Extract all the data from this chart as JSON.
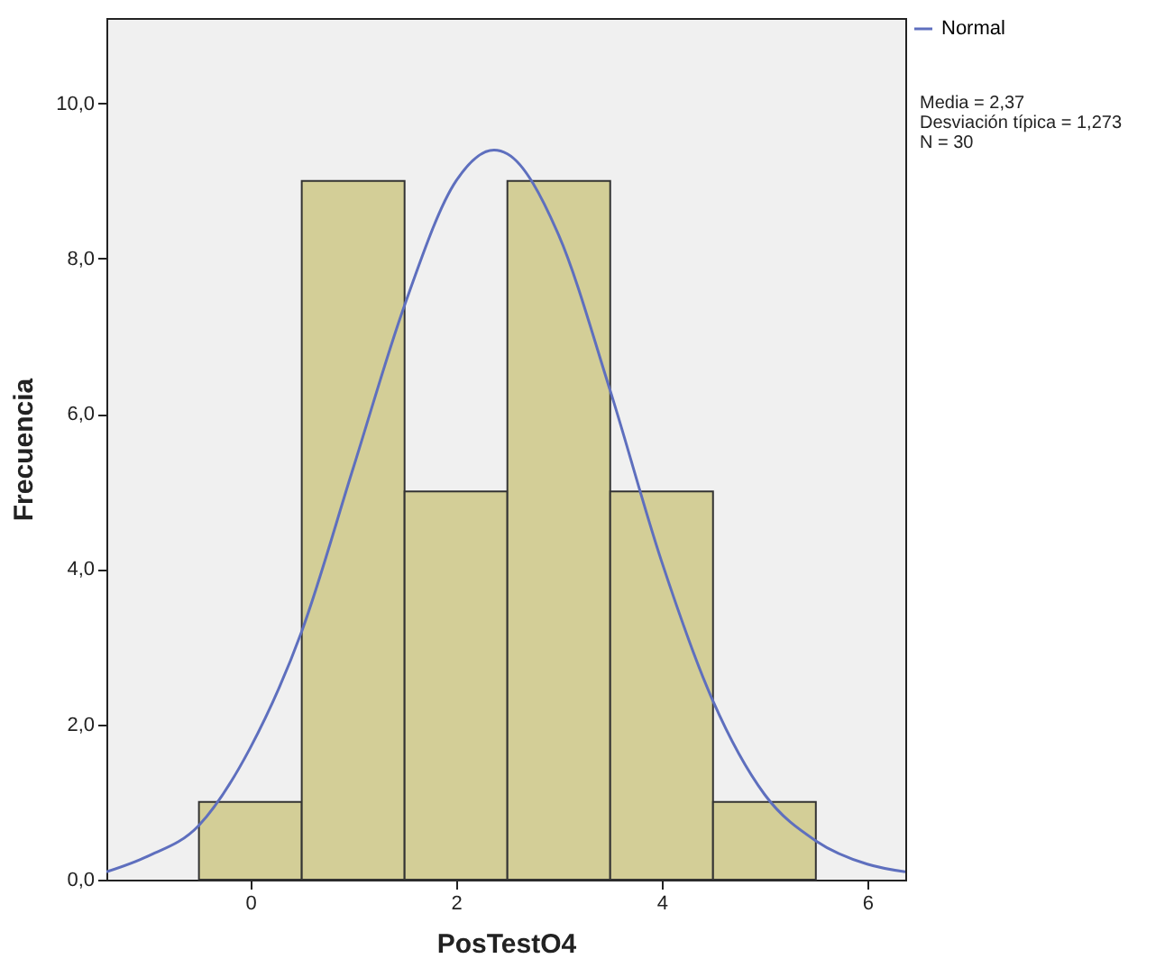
{
  "chart_data": {
    "type": "histogram",
    "xlabel": "PosTestO4",
    "ylabel": "Frecuencia",
    "annotations": [
      "Media = 2,37",
      "Desviación típica = 1,273",
      "N = 30"
    ],
    "bins": [
      -0.5,
      0.5,
      1.5,
      2.5,
      3.5,
      4.5,
      5.5
    ],
    "values": [
      1,
      9,
      5,
      9,
      5,
      1
    ],
    "color": "#d3ce97",
    "series": [
      {
        "type": "line",
        "name": "Normal",
        "color": "#5e6fbe",
        "x": [
          -1.4,
          -1,
          -0.5,
          0,
          0.5,
          1,
          1.5,
          2,
          2.37,
          2.5,
          3,
          3.5,
          4,
          4.5,
          5,
          5.5,
          6,
          6.37
        ],
        "values": [
          0.1,
          0.3,
          0.7,
          1.7,
          3.2,
          5.3,
          7.4,
          9.0,
          9.4,
          9.35,
          8.3,
          6.3,
          4.1,
          2.3,
          1.1,
          0.5,
          0.2,
          0.1
        ]
      }
    ],
    "xlim": [
      -1.4,
      6.37
    ],
    "xticks": [
      0,
      2,
      4,
      6
    ],
    "ylim": [
      0,
      11.1
    ],
    "yticks": [
      {
        "value": 0,
        "label": "0,0"
      },
      {
        "value": 2,
        "label": "2,0"
      },
      {
        "value": 4,
        "label": "4,0"
      },
      {
        "value": 6,
        "label": "6,0"
      },
      {
        "value": 8,
        "label": "8,0"
      },
      {
        "value": 10,
        "label": "10,0"
      }
    ],
    "grid": false,
    "legend": "top right"
  }
}
